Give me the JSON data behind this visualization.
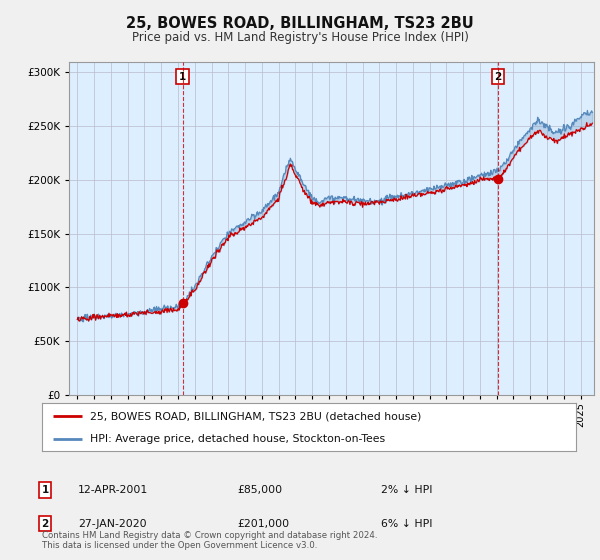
{
  "title": "25, BOWES ROAD, BILLINGHAM, TS23 2BU",
  "subtitle": "Price paid vs. HM Land Registry's House Price Index (HPI)",
  "legend_line1": "25, BOWES ROAD, BILLINGHAM, TS23 2BU (detached house)",
  "legend_line2": "HPI: Average price, detached house, Stockton-on-Tees",
  "annotation1_date": "12-APR-2001",
  "annotation1_price": "£85,000",
  "annotation1_hpi": "2% ↓ HPI",
  "annotation2_date": "27-JAN-2020",
  "annotation2_price": "£201,000",
  "annotation2_hpi": "6% ↓ HPI",
  "footer": "Contains HM Land Registry data © Crown copyright and database right 2024.\nThis data is licensed under the Open Government Licence v3.0.",
  "red_color": "#cc0000",
  "blue_color": "#5588bb",
  "fill_color": "#ddeeff",
  "background_color": "#f0f0f0",
  "plot_bg_color": "#ddeeff",
  "grid_color": "#bbbbcc",
  "sale1_x": 2001.28,
  "sale1_y": 85000,
  "sale2_x": 2020.07,
  "sale2_y": 201000,
  "ylim": [
    0,
    310000
  ],
  "xlim": [
    1994.5,
    2025.8
  ]
}
